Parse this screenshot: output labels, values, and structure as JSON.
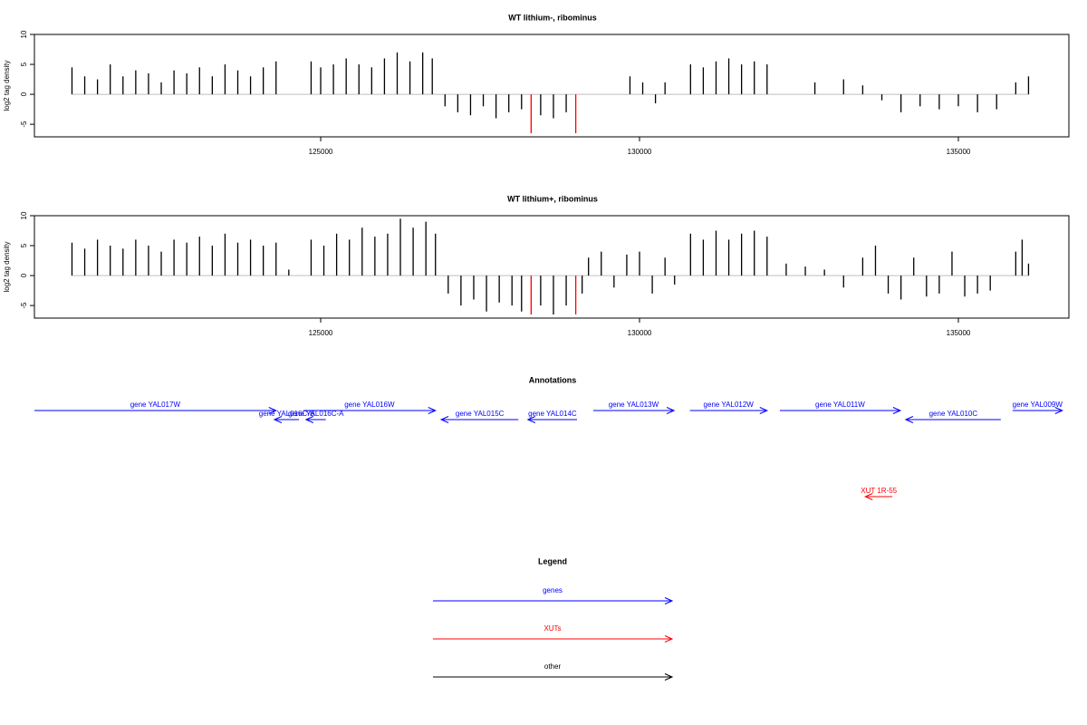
{
  "chart_data": [
    {
      "type": "bar",
      "title": "WT lithium-, ribominus",
      "ylabel": "log2 tag density",
      "xlim": [
        120511,
        136733
      ],
      "xticks": [
        125000,
        130000,
        135000
      ],
      "ylim": [
        -7.1,
        10
      ],
      "yticks": [
        -5,
        0,
        5,
        10
      ],
      "series": [
        {
          "color": "#000000",
          "x": [
            121100,
            121300,
            121500,
            121700,
            121900,
            122100,
            122300,
            122500,
            122700,
            122900,
            123100,
            123300,
            123500,
            123700,
            123900,
            124100,
            124300,
            124850,
            125000,
            125200,
            125400,
            125600,
            125800,
            126000,
            126200,
            126400,
            126600,
            126750,
            126950,
            127150,
            127350,
            127550,
            127750,
            127950,
            128150,
            128450,
            128650,
            128850,
            129850,
            130050,
            130250,
            130400,
            130800,
            131000,
            131200,
            131400,
            131600,
            131800,
            132000,
            132750,
            133200,
            133500,
            133800,
            134100,
            134400,
            134700,
            135000,
            135300,
            135600,
            135900,
            136100
          ],
          "values": [
            4.5,
            3,
            2.5,
            5,
            3,
            4,
            3.5,
            2,
            4,
            3.5,
            4.5,
            3,
            5,
            4,
            3,
            4.5,
            5.5,
            5.5,
            4.5,
            5,
            6,
            5,
            4.5,
            6,
            7,
            5.5,
            7,
            6,
            -2,
            -3,
            -3.5,
            -2,
            -4,
            -3,
            -2.5,
            -3.5,
            -4,
            -3,
            3,
            2,
            -1.5,
            2,
            5,
            4.5,
            5.5,
            6,
            5,
            5.5,
            5,
            2,
            2.5,
            1.5,
            -1,
            -3,
            -2,
            -2.5,
            -2,
            -3,
            -2.5,
            2,
            3
          ]
        },
        {
          "color": "#ff0000",
          "x": [
            128300,
            129000
          ],
          "values": [
            -6.5,
            -6.5
          ]
        }
      ]
    },
    {
      "type": "bar",
      "title": "WT lithium+, ribominus",
      "ylabel": "log2 tag density",
      "xlim": [
        120511,
        136733
      ],
      "xticks": [
        125000,
        130000,
        135000
      ],
      "ylim": [
        -7.1,
        10
      ],
      "yticks": [
        -5,
        0,
        5,
        10
      ],
      "series": [
        {
          "color": "#000000",
          "x": [
            121100,
            121300,
            121500,
            121700,
            121900,
            122100,
            122300,
            122500,
            122700,
            122900,
            123100,
            123300,
            123500,
            123700,
            123900,
            124100,
            124300,
            124500,
            124850,
            125050,
            125250,
            125450,
            125650,
            125850,
            126050,
            126250,
            126450,
            126650,
            126800,
            127000,
            127200,
            127400,
            127600,
            127800,
            128000,
            128150,
            128450,
            128650,
            128850,
            129100,
            129200,
            129400,
            129600,
            129800,
            130000,
            130200,
            130400,
            130550,
            130800,
            131000,
            131200,
            131400,
            131600,
            131800,
            132000,
            132300,
            132600,
            132900,
            133200,
            133500,
            133700,
            133900,
            134100,
            134300,
            134500,
            134700,
            134900,
            135100,
            135300,
            135500,
            135900,
            136000,
            136100
          ],
          "values": [
            5.5,
            4.5,
            6,
            5,
            4.5,
            6,
            5,
            4,
            6,
            5.5,
            6.5,
            5,
            7,
            5.5,
            6,
            5,
            5.5,
            1,
            6,
            5,
            7,
            6,
            8,
            6.5,
            7,
            9.5,
            8,
            9,
            7,
            -3,
            -5,
            -4,
            -6,
            -4.5,
            -5,
            -6,
            -5,
            -6.5,
            -5,
            -3,
            3,
            4,
            -2,
            3.5,
            4,
            -3,
            3,
            -1.5,
            7,
            6,
            7.5,
            6,
            7,
            7.5,
            6.5,
            2,
            1.5,
            1,
            -2,
            3,
            5,
            -3,
            -4,
            3,
            -3.5,
            -3,
            4,
            -3.5,
            -3,
            -2.5,
            4,
            6,
            2
          ]
        },
        {
          "color": "#ff0000",
          "x": [
            128300,
            129000
          ],
          "values": [
            -6.5,
            -6.5
          ]
        }
      ]
    }
  ],
  "annotations": {
    "title": "Annotations",
    "items": [
      {
        "label": "gene YAL017W",
        "start": 120511,
        "end": 124300,
        "strand": "+",
        "kind": "genes"
      },
      {
        "label": "gene YAL016C-B",
        "start": 124275,
        "end": 124660,
        "strand": "-",
        "kind": "genes"
      },
      {
        "label": "gene YAL016C-A",
        "start": 124770,
        "end": 125080,
        "strand": "-",
        "kind": "genes"
      },
      {
        "label": "gene YAL016W",
        "start": 124730,
        "end": 126800,
        "strand": "+",
        "kind": "genes"
      },
      {
        "label": "gene YAL015C",
        "start": 126890,
        "end": 128100,
        "strand": "-",
        "kind": "genes"
      },
      {
        "label": "gene YAL014C",
        "start": 128250,
        "end": 129020,
        "strand": "-",
        "kind": "genes"
      },
      {
        "label": "gene YAL013W",
        "start": 129275,
        "end": 130540,
        "strand": "+",
        "kind": "genes"
      },
      {
        "label": "gene YAL012W",
        "start": 130790,
        "end": 132000,
        "strand": "+",
        "kind": "genes"
      },
      {
        "label": "gene YAL011W",
        "start": 132200,
        "end": 134090,
        "strand": "+",
        "kind": "genes"
      },
      {
        "label": "gene YAL010C",
        "start": 134175,
        "end": 135665,
        "strand": "-",
        "kind": "genes"
      },
      {
        "label": "gene YAL009W",
        "start": 135850,
        "end": 136630,
        "strand": "+",
        "kind": "genes"
      },
      {
        "label": "XUT 1R-55",
        "start": 133540,
        "end": 133965,
        "strand": "-",
        "kind": "XUTs"
      }
    ]
  },
  "legend": {
    "title": "Legend",
    "items": [
      {
        "name": "genes",
        "color": "#0000ff"
      },
      {
        "name": "XUTs",
        "color": "#ff0000"
      },
      {
        "name": "other",
        "color": "#000000"
      }
    ]
  }
}
